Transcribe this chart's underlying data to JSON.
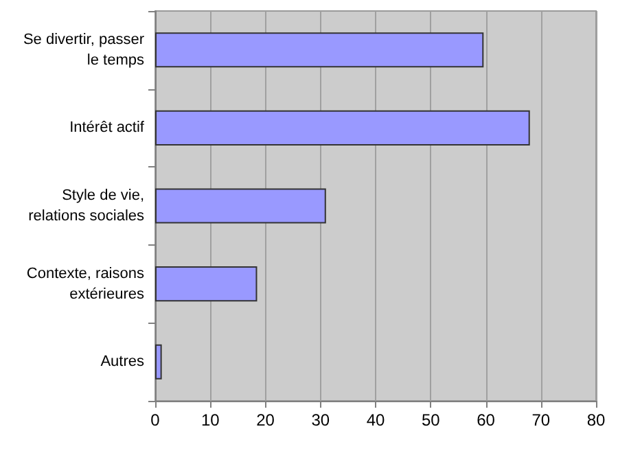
{
  "chart_data": {
    "type": "bar",
    "orientation": "horizontal",
    "categories": [
      "Se divertir, passer le temps",
      "Intérêt actif",
      "Style de vie, relations sociales",
      "Contexte, raisons extérieures",
      "Autres"
    ],
    "values": [
      59.6,
      68,
      31,
      18.5,
      1.2
    ],
    "color": "#9999ff",
    "xlim": [
      0,
      80
    ],
    "xticks": [
      0,
      10,
      20,
      30,
      40,
      50,
      60,
      70,
      80
    ],
    "grid": "x"
  }
}
